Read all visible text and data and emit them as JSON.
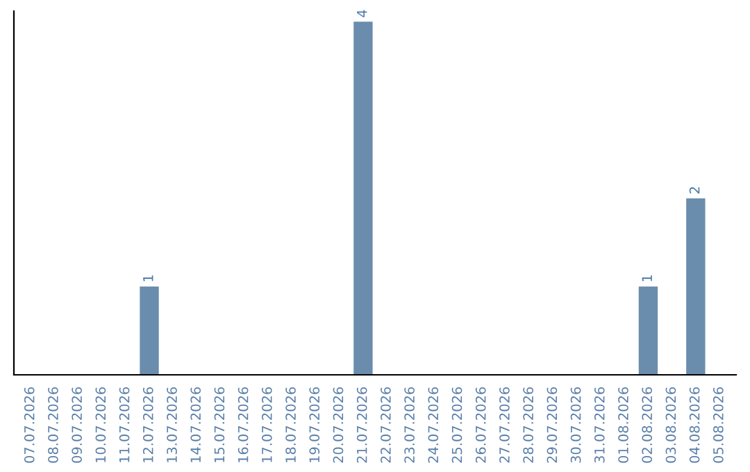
{
  "chart_data": {
    "type": "bar",
    "categories": [
      "07.07.2026",
      "08.07.2026",
      "09.07.2026",
      "10.07.2026",
      "11.07.2026",
      "12.07.2026",
      "13.07.2026",
      "14.07.2026",
      "15.07.2026",
      "16.07.2026",
      "17.07.2026",
      "18.07.2026",
      "19.07.2026",
      "20.07.2026",
      "21.07.2026",
      "22.07.2026",
      "23.07.2026",
      "24.07.2026",
      "25.07.2026",
      "26.07.2026",
      "27.07.2026",
      "28.07.2026",
      "29.07.2026",
      "30.07.2026",
      "31.07.2026",
      "01.08.2026",
      "02.08.2026",
      "03.08.2026",
      "04.08.2026",
      "05.08.2026"
    ],
    "values": [
      0,
      0,
      0,
      0,
      0,
      1,
      0,
      0,
      0,
      0,
      0,
      0,
      0,
      0,
      4,
      0,
      0,
      0,
      0,
      0,
      0,
      0,
      0,
      0,
      0,
      0,
      1,
      0,
      2,
      0
    ],
    "value_labels": [
      null,
      null,
      null,
      null,
      null,
      "1",
      null,
      null,
      null,
      null,
      null,
      null,
      null,
      null,
      "4",
      null,
      null,
      null,
      null,
      null,
      null,
      null,
      null,
      null,
      null,
      null,
      "1",
      null,
      "2",
      null
    ],
    "color": "#6a8cad",
    "grid": false,
    "legend": false
  }
}
